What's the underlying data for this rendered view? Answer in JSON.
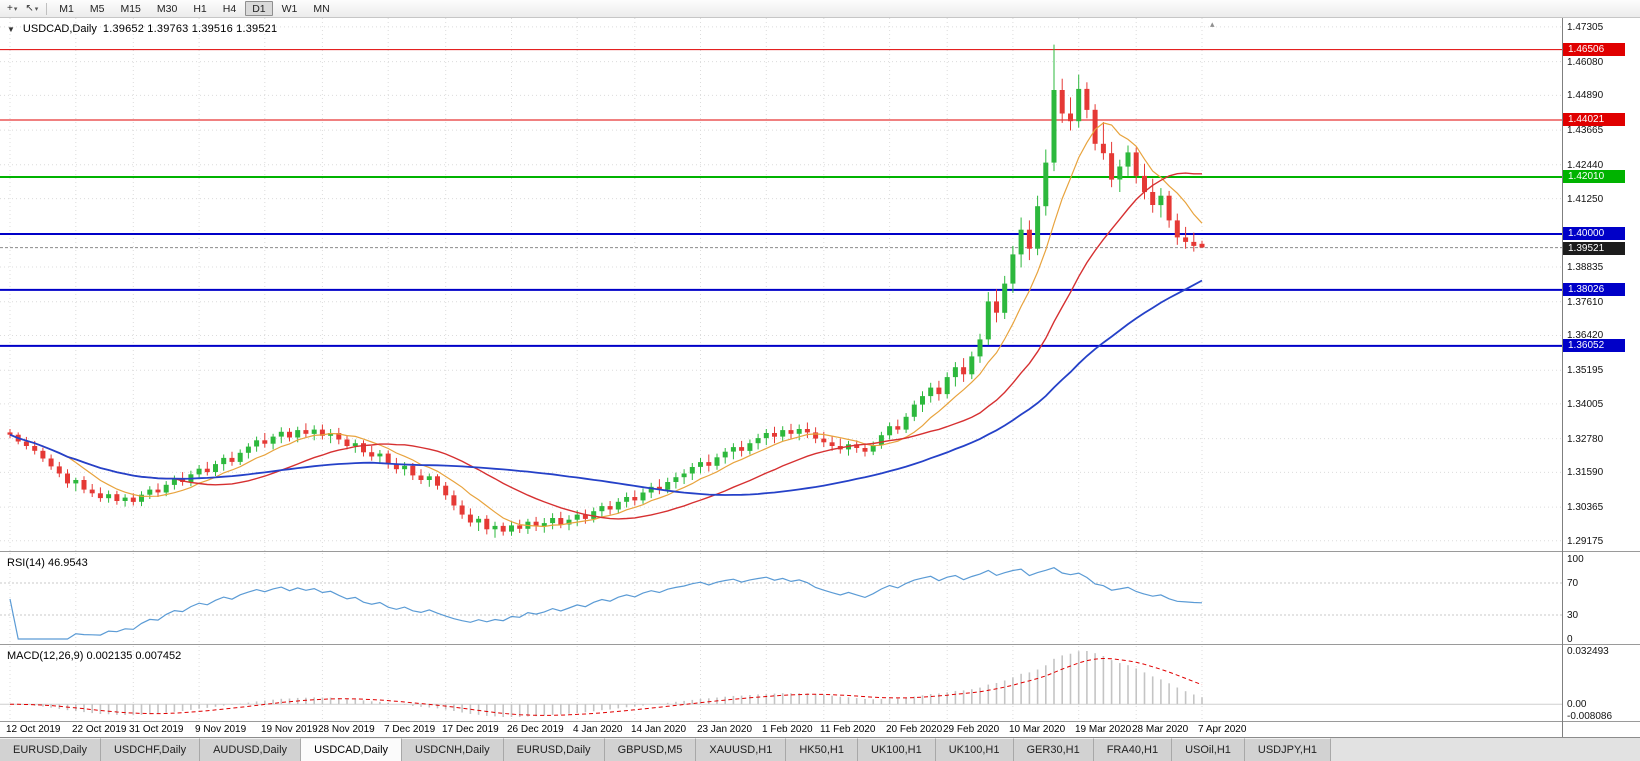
{
  "toolbar": {
    "tools": [
      {
        "name": "crosshair-tool",
        "glyph": "+"
      },
      {
        "name": "cursor-tool",
        "glyph": "↖"
      }
    ],
    "caret_glyph": "▾",
    "timeframes": [
      "M1",
      "M5",
      "M15",
      "M30",
      "H1",
      "H4",
      "D1",
      "W1",
      "MN"
    ],
    "active_timeframe": "D1"
  },
  "chart": {
    "title_symbol": "USDCAD,Daily",
    "title_ohlc": "1.39652 1.39763 1.39516 1.39521",
    "one_click_arrow_glyph": "▼",
    "shift_marker_glyph": "▴",
    "price_axis_labels": [
      "1.47305",
      "1.46080",
      "1.44890",
      "1.43665",
      "1.42440",
      "1.41250",
      "1.38835",
      "1.37610",
      "1.36420",
      "1.35195",
      "1.34005",
      "1.32780",
      "1.31590",
      "1.30365",
      "1.29175"
    ],
    "hlines": [
      {
        "value": 1.46506,
        "label": "1.46506",
        "color": "#e00000",
        "width": 1
      },
      {
        "value": 1.44021,
        "label": "1.44021",
        "color": "#e00000",
        "width": 1
      },
      {
        "value": 1.4201,
        "label": "1.42010",
        "color": "#00b300",
        "width": 2
      },
      {
        "value": 1.4,
        "label": "1.40000",
        "color": "#0000c8",
        "width": 2
      },
      {
        "value": 1.38026,
        "label": "1.38026",
        "color": "#0000c8",
        "width": 2
      },
      {
        "value": 1.36052,
        "label": "1.36052",
        "color": "#0000c8",
        "width": 2
      }
    ],
    "current_price": {
      "value": 1.39521,
      "label": "1.39521"
    },
    "colors": {
      "up": "#2db83d",
      "down": "#e53935",
      "ma_fast": "#e8a33d",
      "ma_mid": "#d63031",
      "ma_slow": "#2541c8",
      "grid": "#dcdcdc",
      "price_badge_bg": "#1c1c1c",
      "rsi_line": "#5b9bd5",
      "macd_hist": "#c4c4c4",
      "macd_signal": "#e00000"
    }
  },
  "chart_data": {
    "type": "candlestick",
    "symbol": "USDCAD",
    "timeframe": "Daily",
    "y_min": 1.2878,
    "y_max": 1.4762,
    "x_labels": [
      "12 Oct 2019",
      "22 Oct 2019",
      "31 Oct 2019",
      "9 Nov 2019",
      "19 Nov 2019",
      "28 Nov 2019",
      "7 Dec 2019",
      "17 Dec 2019",
      "26 Dec 2019",
      "4 Jan 2020",
      "14 Jan 2020",
      "23 Jan 2020",
      "1 Feb 2020",
      "11 Feb 2020",
      "20 Feb 2020",
      "29 Feb 2020",
      "10 Mar 2020",
      "19 Mar 2020",
      "28 Mar 2020",
      "7 Apr 2020"
    ],
    "ohlc": [
      [
        1.33,
        1.3312,
        1.328,
        1.3292
      ],
      [
        1.3292,
        1.33,
        1.3258,
        1.3268
      ],
      [
        1.3268,
        1.3284,
        1.324,
        1.3252
      ],
      [
        1.3252,
        1.327,
        1.3222,
        1.3235
      ],
      [
        1.3235,
        1.3246,
        1.3196,
        1.3208
      ],
      [
        1.3208,
        1.3222,
        1.3168,
        1.318
      ],
      [
        1.318,
        1.3196,
        1.3142,
        1.3155
      ],
      [
        1.3155,
        1.317,
        1.3105,
        1.312
      ],
      [
        1.312,
        1.314,
        1.3092,
        1.3132
      ],
      [
        1.3132,
        1.3145,
        1.3085,
        1.3098
      ],
      [
        1.3098,
        1.3118,
        1.3072,
        1.3085
      ],
      [
        1.3085,
        1.3106,
        1.3055,
        1.3068
      ],
      [
        1.3068,
        1.3095,
        1.3052,
        1.3082
      ],
      [
        1.3082,
        1.3094,
        1.3045,
        1.3058
      ],
      [
        1.3058,
        1.3082,
        1.3038,
        1.307
      ],
      [
        1.307,
        1.3085,
        1.3042,
        1.3055
      ],
      [
        1.3055,
        1.3092,
        1.304,
        1.308
      ],
      [
        1.308,
        1.311,
        1.3065,
        1.3098
      ],
      [
        1.3098,
        1.312,
        1.3072,
        1.3088
      ],
      [
        1.3088,
        1.3128,
        1.3075,
        1.3115
      ],
      [
        1.3115,
        1.3148,
        1.3098,
        1.3135
      ],
      [
        1.3135,
        1.316,
        1.3112,
        1.3125
      ],
      [
        1.3125,
        1.3165,
        1.311,
        1.3152
      ],
      [
        1.3152,
        1.3185,
        1.3135,
        1.3172
      ],
      [
        1.3172,
        1.3196,
        1.3148,
        1.316
      ],
      [
        1.316,
        1.32,
        1.3146,
        1.3188
      ],
      [
        1.3188,
        1.3222,
        1.3165,
        1.321
      ],
      [
        1.321,
        1.3232,
        1.3182,
        1.3196
      ],
      [
        1.3196,
        1.324,
        1.3185,
        1.3228
      ],
      [
        1.3228,
        1.3262,
        1.3208,
        1.325
      ],
      [
        1.325,
        1.3285,
        1.3232,
        1.3272
      ],
      [
        1.3272,
        1.3298,
        1.3246,
        1.326
      ],
      [
        1.326,
        1.3295,
        1.324,
        1.3285
      ],
      [
        1.3285,
        1.3318,
        1.3262,
        1.3302
      ],
      [
        1.3302,
        1.3315,
        1.3268,
        1.3282
      ],
      [
        1.3282,
        1.332,
        1.3265,
        1.3308
      ],
      [
        1.3308,
        1.3332,
        1.328,
        1.3295
      ],
      [
        1.3295,
        1.3325,
        1.3272,
        1.331
      ],
      [
        1.331,
        1.3328,
        1.3275,
        1.3288
      ],
      [
        1.3288,
        1.3312,
        1.3262,
        1.3298
      ],
      [
        1.3298,
        1.3316,
        1.3258,
        1.3275
      ],
      [
        1.3275,
        1.329,
        1.324,
        1.3252
      ],
      [
        1.3252,
        1.3275,
        1.3228,
        1.3262
      ],
      [
        1.3262,
        1.3272,
        1.3215,
        1.323
      ],
      [
        1.323,
        1.3252,
        1.32,
        1.3215
      ],
      [
        1.3215,
        1.3238,
        1.3188,
        1.3225
      ],
      [
        1.3225,
        1.3236,
        1.3172,
        1.3188
      ],
      [
        1.3188,
        1.321,
        1.3155,
        1.317
      ],
      [
        1.317,
        1.3195,
        1.3148,
        1.3182
      ],
      [
        1.3182,
        1.3192,
        1.3132,
        1.3148
      ],
      [
        1.3148,
        1.317,
        1.3118,
        1.3132
      ],
      [
        1.3132,
        1.3155,
        1.3108,
        1.3145
      ],
      [
        1.3145,
        1.3152,
        1.3098,
        1.3112
      ],
      [
        1.3112,
        1.3125,
        1.3062,
        1.3078
      ],
      [
        1.3078,
        1.3095,
        1.3025,
        1.3042
      ],
      [
        1.3042,
        1.306,
        1.2995,
        1.301
      ],
      [
        1.301,
        1.3032,
        1.2968,
        1.2982
      ],
      [
        1.2982,
        1.3005,
        1.2952,
        1.2995
      ],
      [
        1.2995,
        1.3008,
        1.294,
        1.2958
      ],
      [
        1.2958,
        1.2985,
        1.2928,
        1.297
      ],
      [
        1.297,
        1.2982,
        1.2936,
        1.295
      ],
      [
        1.295,
        1.2988,
        1.2935,
        1.2972
      ],
      [
        1.2972,
        1.2992,
        1.2945,
        1.296
      ],
      [
        1.296,
        1.2995,
        1.2942,
        1.2985
      ],
      [
        1.2985,
        1.3002,
        1.2952,
        1.2968
      ],
      [
        1.2968,
        1.2998,
        1.2946,
        1.298
      ],
      [
        1.298,
        1.3015,
        1.2958,
        1.2998
      ],
      [
        1.2998,
        1.302,
        1.2962,
        1.2975
      ],
      [
        1.2975,
        1.3008,
        1.2955,
        1.2992
      ],
      [
        1.2992,
        1.3025,
        1.297,
        1.301
      ],
      [
        1.301,
        1.3028,
        1.2978,
        1.2995
      ],
      [
        1.2995,
        1.3035,
        1.2982,
        1.3022
      ],
      [
        1.3022,
        1.3052,
        1.3002,
        1.304
      ],
      [
        1.304,
        1.3058,
        1.301,
        1.3028
      ],
      [
        1.3028,
        1.3068,
        1.3015,
        1.3055
      ],
      [
        1.3055,
        1.3088,
        1.3035,
        1.3072
      ],
      [
        1.3072,
        1.3095,
        1.3042,
        1.306
      ],
      [
        1.306,
        1.3102,
        1.3048,
        1.3088
      ],
      [
        1.3088,
        1.3122,
        1.3068,
        1.3108
      ],
      [
        1.3108,
        1.3135,
        1.3082,
        1.3098
      ],
      [
        1.3098,
        1.314,
        1.3085,
        1.3125
      ],
      [
        1.3125,
        1.3158,
        1.3102,
        1.3142
      ],
      [
        1.3142,
        1.317,
        1.3118,
        1.3155
      ],
      [
        1.3155,
        1.3192,
        1.3132,
        1.3178
      ],
      [
        1.3178,
        1.321,
        1.3155,
        1.3195
      ],
      [
        1.3195,
        1.3222,
        1.3162,
        1.3182
      ],
      [
        1.3182,
        1.3225,
        1.3168,
        1.3212
      ],
      [
        1.3212,
        1.3245,
        1.319,
        1.3232
      ],
      [
        1.3232,
        1.3262,
        1.3205,
        1.3248
      ],
      [
        1.3248,
        1.327,
        1.3215,
        1.3235
      ],
      [
        1.3235,
        1.3275,
        1.3222,
        1.3262
      ],
      [
        1.3262,
        1.3295,
        1.324,
        1.328
      ],
      [
        1.328,
        1.3312,
        1.3255,
        1.3298
      ],
      [
        1.3298,
        1.332,
        1.3262,
        1.3285
      ],
      [
        1.3285,
        1.3322,
        1.327,
        1.3308
      ],
      [
        1.3308,
        1.333,
        1.3278,
        1.3295
      ],
      [
        1.3295,
        1.3328,
        1.3272,
        1.3312
      ],
      [
        1.3312,
        1.3335,
        1.328,
        1.33
      ],
      [
        1.33,
        1.3318,
        1.3262,
        1.3278
      ],
      [
        1.3278,
        1.3302,
        1.3248,
        1.3265
      ],
      [
        1.3265,
        1.3288,
        1.3235,
        1.3252
      ],
      [
        1.3252,
        1.3278,
        1.3225,
        1.324
      ],
      [
        1.324,
        1.327,
        1.3218,
        1.3258
      ],
      [
        1.3258,
        1.3272,
        1.3228,
        1.3245
      ],
      [
        1.3245,
        1.3262,
        1.3215,
        1.3232
      ],
      [
        1.3232,
        1.3268,
        1.322,
        1.3255
      ],
      [
        1.3255,
        1.3302,
        1.3242,
        1.329
      ],
      [
        1.329,
        1.3335,
        1.3275,
        1.3322
      ],
      [
        1.3322,
        1.3345,
        1.3295,
        1.331
      ],
      [
        1.331,
        1.3368,
        1.3298,
        1.3355
      ],
      [
        1.3355,
        1.3412,
        1.334,
        1.3398
      ],
      [
        1.3398,
        1.3445,
        1.3372,
        1.3428
      ],
      [
        1.3428,
        1.3475,
        1.3405,
        1.3458
      ],
      [
        1.3458,
        1.3482,
        1.3412,
        1.3435
      ],
      [
        1.3435,
        1.3512,
        1.342,
        1.3495
      ],
      [
        1.3495,
        1.3548,
        1.3462,
        1.353
      ],
      [
        1.353,
        1.3562,
        1.3478,
        1.3505
      ],
      [
        1.3505,
        1.3585,
        1.3488,
        1.3568
      ],
      [
        1.3568,
        1.3648,
        1.3545,
        1.3628
      ],
      [
        1.3628,
        1.3795,
        1.3608,
        1.3762
      ],
      [
        1.3762,
        1.3805,
        1.3688,
        1.3722
      ],
      [
        1.3722,
        1.3852,
        1.37,
        1.3825
      ],
      [
        1.3825,
        1.3958,
        1.3792,
        1.3928
      ],
      [
        1.3928,
        1.4058,
        1.3882,
        1.4015
      ],
      [
        1.4015,
        1.4048,
        1.3908,
        1.3948
      ],
      [
        1.3948,
        1.4135,
        1.3925,
        1.4098
      ],
      [
        1.4098,
        1.4298,
        1.4065,
        1.4252
      ],
      [
        1.4252,
        1.4668,
        1.4222,
        1.4508
      ],
      [
        1.4508,
        1.4548,
        1.4392,
        1.4425
      ],
      [
        1.4425,
        1.4482,
        1.4365,
        1.4398
      ],
      [
        1.4398,
        1.4562,
        1.4375,
        1.4512
      ],
      [
        1.4512,
        1.4535,
        1.4408,
        1.4438
      ],
      [
        1.4438,
        1.4458,
        1.4295,
        1.4318
      ],
      [
        1.4318,
        1.4395,
        1.4262,
        1.4285
      ],
      [
        1.4285,
        1.4325,
        1.4165,
        1.4192
      ],
      [
        1.4192,
        1.4262,
        1.4148,
        1.4238
      ],
      [
        1.4238,
        1.4312,
        1.4205,
        1.4288
      ],
      [
        1.4288,
        1.4305,
        1.4178,
        1.4205
      ],
      [
        1.4205,
        1.4248,
        1.4122,
        1.4148
      ],
      [
        1.4148,
        1.4195,
        1.4075,
        1.4102
      ],
      [
        1.4102,
        1.4162,
        1.4058,
        1.4135
      ],
      [
        1.4135,
        1.4152,
        1.4022,
        1.4048
      ],
      [
        1.4048,
        1.4072,
        1.3962,
        1.3988
      ],
      [
        1.3988,
        1.4025,
        1.3948,
        1.3972
      ],
      [
        1.3972,
        1.4005,
        1.3938,
        1.3958
      ],
      [
        1.39652,
        1.39763,
        1.39516,
        1.39521
      ]
    ]
  },
  "rsi_panel": {
    "label": "RSI(14) 46.9543",
    "axis_labels": [
      "100",
      "70",
      "30",
      "0"
    ],
    "levels": [
      70,
      30
    ]
  },
  "macd_panel": {
    "label": "MACD(12,26,9) 0.002135 0.007452",
    "axis_labels": [
      "0.032493",
      "0.00",
      "-0.008086"
    ]
  },
  "tabs": [
    "EURUSD,Daily",
    "USDCHF,Daily",
    "AUDUSD,Daily",
    "USDCAD,Daily",
    "USDCNH,Daily",
    "EURUSD,Daily",
    "GBPUSD,M5",
    "XAUUSD,H1",
    "HK50,H1",
    "UK100,H1",
    "UK100,H1",
    "GER30,H1",
    "FRA40,H1",
    "USOil,H1",
    "USDJPY,H1"
  ],
  "active_tab": "USDCAD,Daily"
}
